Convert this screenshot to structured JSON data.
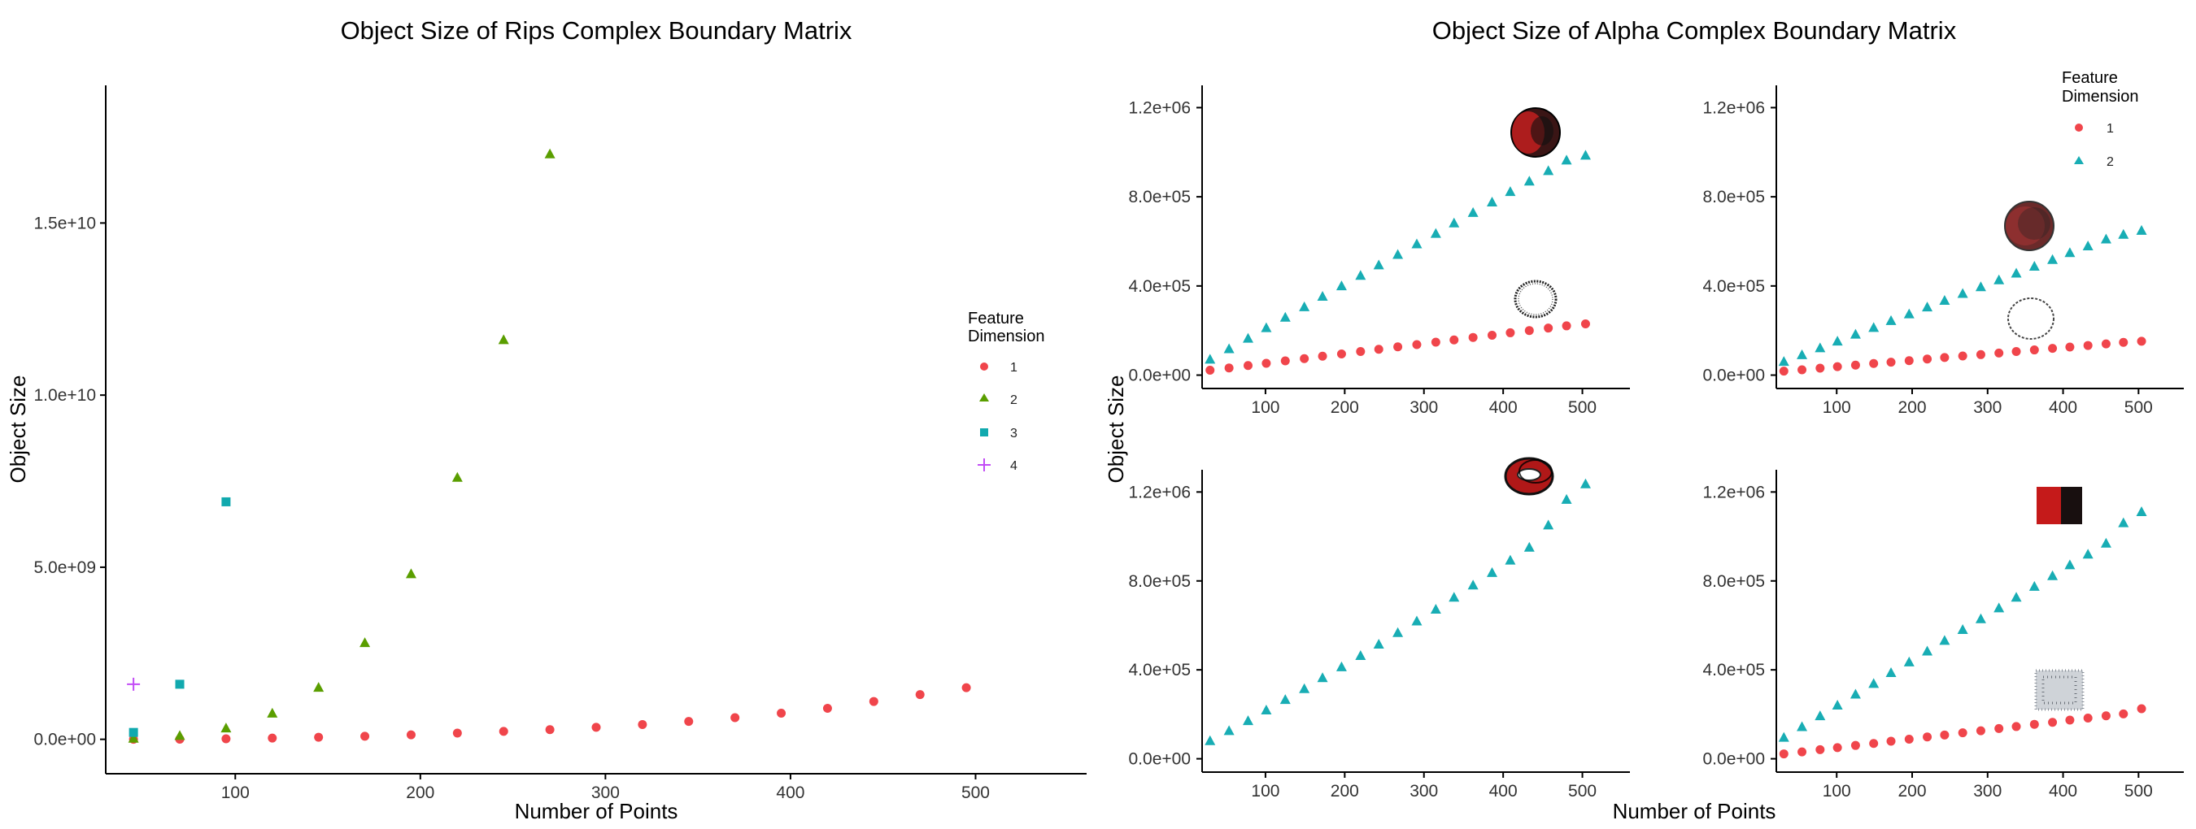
{
  "titles": {
    "left": "Object Size of Rips Complex Boundary Matrix",
    "right": "Object Size of Alpha Complex Boundary Matrix"
  },
  "axis_titles": {
    "left_x": "Number of Points",
    "left_y": "Object Size",
    "right_x": "Number of Points",
    "right_y": "Object Size"
  },
  "colors": {
    "dim1": "#F0454B",
    "dim2_rips": "#5A9E00",
    "dim2_alpha": "#18ADB4",
    "dim3": "#11A9AE",
    "dim4": "#C24CF6"
  },
  "legends": {
    "left": {
      "title_line1": "Feature",
      "title_line2": "Dimension",
      "labels": [
        "1",
        "2",
        "3",
        "4"
      ]
    },
    "right": {
      "title_line1": "Feature",
      "title_line2": "Dimension",
      "labels": [
        "1",
        "2"
      ]
    }
  },
  "chart_data": [
    {
      "type": "scatter",
      "title": "Object Size of Rips Complex Boundary Matrix",
      "xlabel": "Number of Points",
      "ylabel": "Object Size",
      "xlim": [
        30,
        560
      ],
      "ylim": [
        -1000000000.0,
        19000000000.0
      ],
      "xticks": [
        100,
        200,
        300,
        400,
        500
      ],
      "yticks": [
        0,
        5000000000.0,
        10000000000.0,
        15000000000.0
      ],
      "ytick_labels": [
        "0.0e+00",
        "5.0e+09",
        "1.0e+10",
        "1.5e+10"
      ],
      "legend_position": "right",
      "series": [
        {
          "name": "1",
          "marker": "circle",
          "x": [
            45,
            70,
            95,
            120,
            145,
            170,
            195,
            220,
            245,
            270,
            295,
            320,
            345,
            370,
            395,
            420,
            445,
            470,
            495
          ],
          "y": [
            1000000.0,
            5000000.0,
            15000000.0,
            35000000.0,
            60000000.0,
            90000000.0,
            130000000.0,
            180000000.0,
            230000000.0,
            280000000.0,
            350000000.0,
            430000000.0,
            520000000.0,
            630000000.0,
            760000000.0,
            900000000.0,
            1100000000.0,
            1300000000.0,
            1500000000.0
          ]
        },
        {
          "name": "2",
          "marker": "triangle",
          "x": [
            45,
            70,
            95,
            120,
            145,
            170,
            195,
            220,
            245,
            270
          ],
          "y": [
            20000000.0,
            100000000.0,
            320000000.0,
            750000000.0,
            1500000000.0,
            2800000000.0,
            4800000000.0,
            7600000000.0,
            11600000000.0,
            17000000000.0
          ]
        },
        {
          "name": "3",
          "marker": "square",
          "x": [
            45,
            70,
            95
          ],
          "y": [
            200000000.0,
            1600000000.0,
            6900000000.0
          ]
        },
        {
          "name": "4",
          "marker": "plus",
          "x": [
            45
          ],
          "y": [
            1600000000.0
          ]
        }
      ]
    },
    {
      "type": "scatter",
      "panel": "top-left",
      "xlim": [
        20,
        560
      ],
      "ylim": [
        -60000.0,
        1300000.0
      ],
      "xticks": [
        100,
        200,
        300,
        400,
        500
      ],
      "yticks": [
        0,
        400000.0,
        800000.0,
        1200000.0
      ],
      "ytick_labels": [
        "0.0e+00",
        "4.0e+05",
        "8.0e+05",
        "1.2e+06"
      ],
      "series": [
        {
          "name": "1",
          "marker": "circle",
          "x": [
            30,
            54,
            78,
            101,
            125,
            149,
            172,
            196,
            220,
            243,
            267,
            291,
            315,
            338,
            362,
            386,
            409,
            433,
            457,
            480,
            504
          ],
          "y": [
            22000,
            32000,
            43000,
            53000,
            64000,
            74000,
            85000,
            95000,
            106000,
            116000,
            127000,
            137000,
            148000,
            158000,
            169000,
            179000,
            190000,
            200000,
            211000,
            221000,
            230000
          ]
        },
        {
          "name": "2",
          "marker": "triangle",
          "x": [
            30,
            54,
            78,
            101,
            125,
            149,
            172,
            196,
            220,
            243,
            267,
            291,
            315,
            338,
            362,
            386,
            409,
            433,
            457,
            480,
            504
          ],
          "y": [
            70000,
            117000,
            164000,
            211000,
            258000,
            305000,
            352000,
            399000,
            446000,
            493000,
            540000,
            587000,
            634000,
            681000,
            728000,
            775000,
            822000,
            869000,
            916000,
            963000,
            985000
          ]
        }
      ]
    },
    {
      "type": "scatter",
      "panel": "top-right",
      "xlim": [
        20,
        560
      ],
      "ylim": [
        -60000.0,
        1300000.0
      ],
      "xticks": [
        100,
        200,
        300,
        400,
        500
      ],
      "yticks": [
        0,
        400000.0,
        800000.0,
        1200000.0
      ],
      "ytick_labels": [
        "0.0e+00",
        "4.0e+05",
        "8.0e+05",
        "1.2e+06"
      ],
      "series": [
        {
          "name": "1",
          "marker": "circle",
          "x": [
            30,
            54,
            78,
            101,
            125,
            149,
            172,
            196,
            220,
            243,
            267,
            291,
            315,
            338,
            362,
            386,
            409,
            433,
            457,
            480,
            504
          ],
          "y": [
            18000,
            24000,
            31000,
            38000,
            45000,
            52000,
            58000,
            65000,
            72000,
            79000,
            86000,
            92000,
            99000,
            106000,
            113000,
            120000,
            126000,
            133000,
            140000,
            147000,
            152000
          ]
        },
        {
          "name": "2",
          "marker": "triangle",
          "x": [
            30,
            54,
            78,
            101,
            125,
            149,
            172,
            196,
            220,
            243,
            267,
            291,
            315,
            338,
            362,
            386,
            409,
            433,
            457,
            480,
            504
          ],
          "y": [
            60000,
            90000,
            121000,
            151000,
            182000,
            212000,
            243000,
            273000,
            304000,
            334000,
            365000,
            395000,
            426000,
            456000,
            487000,
            517000,
            548000,
            578000,
            609000,
            630000,
            648000
          ]
        }
      ]
    },
    {
      "type": "scatter",
      "panel": "bottom-left",
      "xlim": [
        20,
        560
      ],
      "ylim": [
        -60000.0,
        1300000.0
      ],
      "xticks": [
        100,
        200,
        300,
        400,
        500
      ],
      "yticks": [
        0,
        400000.0,
        800000.0,
        1200000.0
      ],
      "ytick_labels": [
        "0.0e+00",
        "4.0e+05",
        "8.0e+05",
        "1.2e+06"
      ],
      "series": [
        {
          "name": "2",
          "marker": "triangle",
          "x": [
            30,
            54,
            78,
            101,
            125,
            149,
            172,
            196,
            220,
            243,
            267,
            291,
            315,
            338,
            362,
            386,
            409,
            433,
            457,
            480,
            504
          ],
          "y": [
            80000,
            125000,
            170000,
            218000,
            265000,
            314000,
            363000,
            412000,
            463000,
            514000,
            566000,
            618000,
            671000,
            725000,
            780000,
            836000,
            892000,
            950000,
            1050000,
            1165000,
            1235000
          ]
        }
      ]
    },
    {
      "type": "scatter",
      "panel": "bottom-right",
      "xlim": [
        20,
        560
      ],
      "ylim": [
        -60000.0,
        1300000.0
      ],
      "xticks": [
        100,
        200,
        300,
        400,
        500
      ],
      "yticks": [
        0,
        400000.0,
        800000.0,
        1200000.0
      ],
      "ytick_labels": [
        "0.0e+00",
        "4.0e+05",
        "8.0e+05",
        "1.2e+06"
      ],
      "series": [
        {
          "name": "1",
          "marker": "circle",
          "x": [
            30,
            54,
            78,
            101,
            125,
            149,
            172,
            196,
            220,
            243,
            267,
            291,
            315,
            338,
            362,
            386,
            409,
            433,
            457,
            480,
            504
          ],
          "y": [
            22000,
            31000,
            41000,
            50000,
            60000,
            69000,
            79000,
            88000,
            98000,
            107000,
            117000,
            126000,
            136000,
            145000,
            155000,
            164000,
            174000,
            183000,
            193000,
            202000,
            225000
          ]
        },
        {
          "name": "2",
          "marker": "triangle",
          "x": [
            30,
            54,
            78,
            101,
            125,
            149,
            172,
            196,
            220,
            243,
            267,
            291,
            315,
            338,
            362,
            386,
            409,
            433,
            457,
            480,
            504
          ],
          "y": [
            95000,
            143000,
            192000,
            240000,
            289000,
            337000,
            386000,
            434000,
            483000,
            531000,
            580000,
            628000,
            677000,
            725000,
            774000,
            822000,
            871000,
            919000,
            968000,
            1060000,
            1110000
          ]
        }
      ]
    }
  ]
}
